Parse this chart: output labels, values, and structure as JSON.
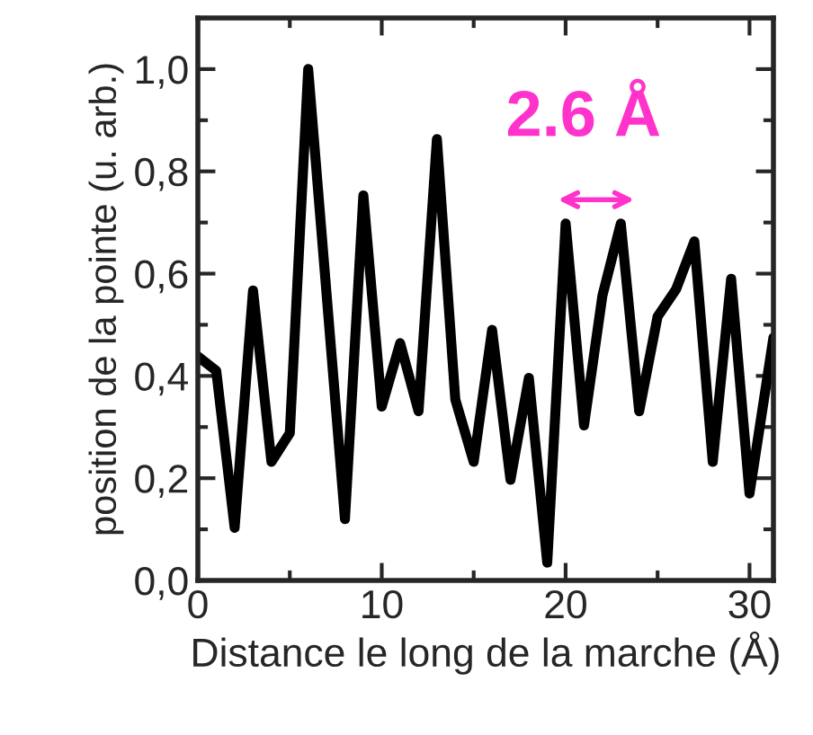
{
  "chart_data": {
    "type": "line",
    "xlabel": "Distance le long de la marche (Å)",
    "ylabel": "position de la pointe (u. arb.)",
    "series": [
      {
        "color": "#000000",
        "x": [
          0,
          1,
          2,
          3,
          4,
          5,
          6,
          8,
          9,
          10,
          11,
          12,
          13,
          14,
          15,
          16,
          17,
          18,
          19,
          20,
          21,
          22,
          23,
          24,
          25,
          26,
          27,
          28,
          29,
          30,
          31.3
        ],
        "values": [
          0.438,
          0.41,
          0.103,
          0.567,
          0.232,
          0.288,
          1.0,
          0.12,
          0.753,
          0.34,
          0.464,
          0.331,
          0.863,
          0.354,
          0.232,
          0.49,
          0.197,
          0.396,
          0.035,
          0.698,
          0.303,
          0.557,
          0.698,
          0.331,
          0.516,
          0.569,
          0.663,
          0.232,
          0.59,
          0.17,
          0.475
        ]
      }
    ],
    "annotations": [
      "2.6 Å"
    ],
    "xlim": [
      0,
      31.3
    ],
    "ylim": [
      0,
      1.1
    ],
    "xticks": [
      0,
      10,
      20,
      30
    ],
    "yticks": [
      {
        "value": 0,
        "label": "0,0"
      },
      {
        "value": 0.2,
        "label": "0,2"
      },
      {
        "value": 0.4,
        "label": "0,4"
      },
      {
        "value": 0.6,
        "label": "0,6"
      },
      {
        "value": 0.8,
        "label": "0,8"
      },
      {
        "value": 1.0,
        "label": "1,0"
      }
    ],
    "grid": false,
    "legend": false,
    "marker": "none",
    "line_style": "solid"
  }
}
